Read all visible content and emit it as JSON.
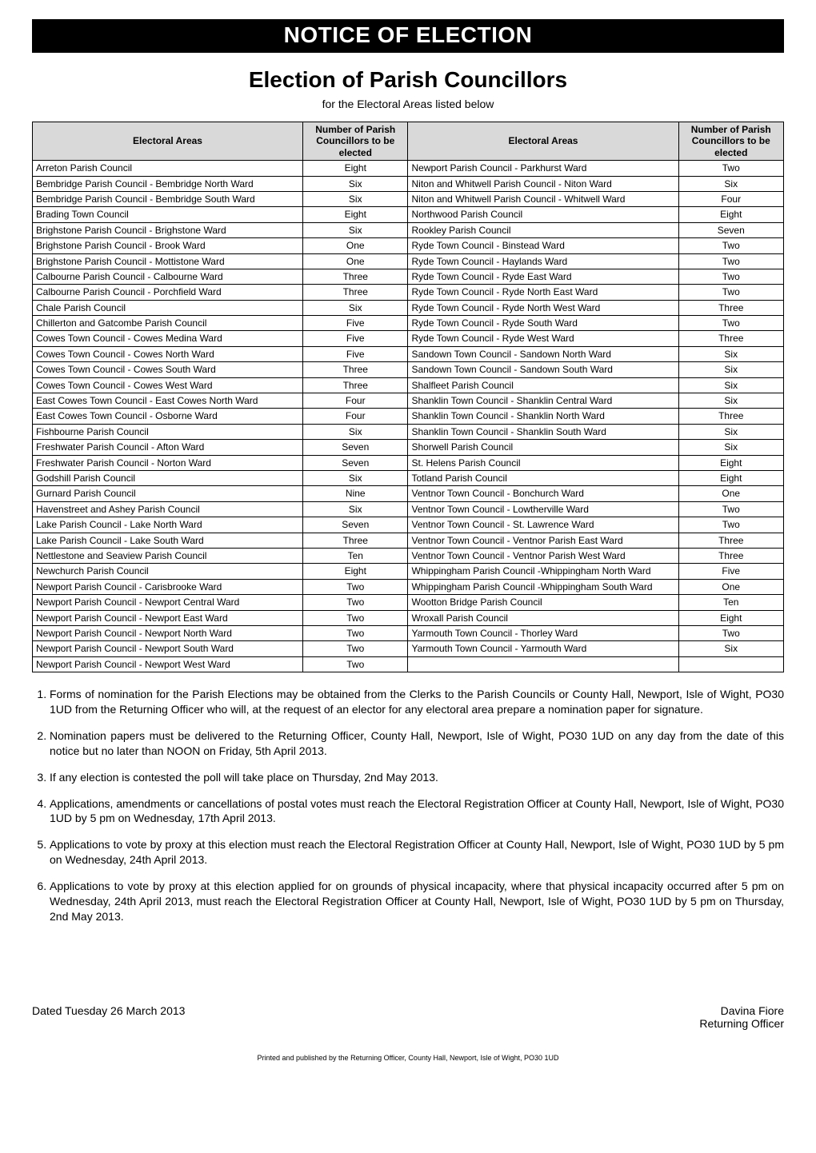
{
  "banner": "NOTICE OF ELECTION",
  "title": "Election of Parish Councillors",
  "subtitle": "for the Electoral Areas listed below",
  "table": {
    "header_area": "Electoral Areas",
    "header_count": "Number of Parish Councillors to be elected",
    "header_bg": "#d9d9d9",
    "border_color": "#000000",
    "left": [
      {
        "area": "Arreton Parish Council",
        "count": "Eight"
      },
      {
        "area": "Bembridge Parish Council - Bembridge North Ward",
        "count": "Six"
      },
      {
        "area": "Bembridge Parish Council - Bembridge South Ward",
        "count": "Six"
      },
      {
        "area": "Brading Town Council",
        "count": "Eight"
      },
      {
        "area": "Brighstone Parish Council - Brighstone Ward",
        "count": "Six"
      },
      {
        "area": "Brighstone Parish Council - Brook Ward",
        "count": "One"
      },
      {
        "area": "Brighstone Parish Council - Mottistone Ward",
        "count": "One"
      },
      {
        "area": "Calbourne Parish Council - Calbourne Ward",
        "count": "Three"
      },
      {
        "area": "Calbourne Parish Council - Porchfield Ward",
        "count": "Three"
      },
      {
        "area": "Chale Parish Council",
        "count": "Six"
      },
      {
        "area": "Chillerton and Gatcombe Parish Council",
        "count": "Five"
      },
      {
        "area": "Cowes Town Council - Cowes Medina Ward",
        "count": "Five"
      },
      {
        "area": "Cowes Town Council - Cowes North Ward",
        "count": "Five"
      },
      {
        "area": "Cowes Town Council - Cowes South Ward",
        "count": "Three"
      },
      {
        "area": "Cowes Town Council - Cowes West Ward",
        "count": "Three"
      },
      {
        "area": "East Cowes Town Council - East Cowes North Ward",
        "count": "Four"
      },
      {
        "area": "East Cowes Town Council - Osborne Ward",
        "count": "Four"
      },
      {
        "area": "Fishbourne Parish Council",
        "count": "Six"
      },
      {
        "area": "Freshwater Parish Council - Afton Ward",
        "count": "Seven"
      },
      {
        "area": "Freshwater Parish Council - Norton Ward",
        "count": "Seven"
      },
      {
        "area": "Godshill Parish Council",
        "count": "Six"
      },
      {
        "area": "Gurnard Parish Council",
        "count": "Nine"
      },
      {
        "area": "Havenstreet and Ashey Parish Council",
        "count": "Six"
      },
      {
        "area": "Lake Parish Council - Lake North Ward",
        "count": "Seven"
      },
      {
        "area": "Lake Parish Council - Lake South Ward",
        "count": "Three"
      },
      {
        "area": "Nettlestone and Seaview Parish Council",
        "count": "Ten"
      },
      {
        "area": "Newchurch Parish Council",
        "count": "Eight"
      },
      {
        "area": "Newport Parish Council - Carisbrooke Ward",
        "count": "Two"
      },
      {
        "area": "Newport Parish Council - Newport Central Ward",
        "count": "Two"
      },
      {
        "area": "Newport Parish Council - Newport East Ward",
        "count": "Two"
      },
      {
        "area": "Newport Parish Council - Newport North Ward",
        "count": "Two"
      },
      {
        "area": "Newport Parish Council - Newport South Ward",
        "count": "Two"
      },
      {
        "area": "Newport Parish Council - Newport West Ward",
        "count": "Two"
      }
    ],
    "right": [
      {
        "area": "Newport Parish Council - Parkhurst Ward",
        "count": "Two"
      },
      {
        "area": "Niton and Whitwell Parish Council - Niton Ward",
        "count": "Six"
      },
      {
        "area": "Niton and Whitwell Parish Council - Whitwell Ward",
        "count": "Four"
      },
      {
        "area": "Northwood Parish Council",
        "count": "Eight"
      },
      {
        "area": "Rookley Parish Council",
        "count": "Seven"
      },
      {
        "area": "Ryde Town Council - Binstead Ward",
        "count": "Two"
      },
      {
        "area": "Ryde Town Council - Haylands Ward",
        "count": "Two"
      },
      {
        "area": "Ryde Town Council - Ryde East Ward",
        "count": "Two"
      },
      {
        "area": "Ryde Town Council - Ryde North East Ward",
        "count": "Two"
      },
      {
        "area": "Ryde Town Council - Ryde North West Ward",
        "count": "Three"
      },
      {
        "area": "Ryde Town Council - Ryde South Ward",
        "count": "Two"
      },
      {
        "area": "Ryde Town Council - Ryde West Ward",
        "count": "Three"
      },
      {
        "area": "Sandown Town Council - Sandown North Ward",
        "count": "Six"
      },
      {
        "area": "Sandown Town Council - Sandown South Ward",
        "count": "Six"
      },
      {
        "area": "Shalfleet Parish Council",
        "count": "Six"
      },
      {
        "area": "Shanklin Town Council - Shanklin Central Ward",
        "count": "Six"
      },
      {
        "area": "Shanklin Town Council - Shanklin North Ward",
        "count": "Three"
      },
      {
        "area": "Shanklin Town Council - Shanklin South Ward",
        "count": "Six"
      },
      {
        "area": "Shorwell Parish Council",
        "count": "Six"
      },
      {
        "area": "St. Helens Parish Council",
        "count": "Eight"
      },
      {
        "area": "Totland Parish Council",
        "count": "Eight"
      },
      {
        "area": "Ventnor Town Council - Bonchurch Ward",
        "count": "One"
      },
      {
        "area": "Ventnor Town Council - Lowtherville Ward",
        "count": "Two"
      },
      {
        "area": "Ventnor Town Council - St. Lawrence Ward",
        "count": "Two"
      },
      {
        "area": "Ventnor Town Council - Ventnor Parish East Ward",
        "count": "Three"
      },
      {
        "area": "Ventnor Town Council - Ventnor Parish West Ward",
        "count": "Three"
      },
      {
        "area": "Whippingham Parish Council -Whippingham North Ward",
        "count": "Five"
      },
      {
        "area": "Whippingham Parish Council -Whippingham South Ward",
        "count": "One"
      },
      {
        "area": "Wootton Bridge Parish Council",
        "count": "Ten"
      },
      {
        "area": "Wroxall Parish Council",
        "count": "Eight"
      },
      {
        "area": "Yarmouth Town Council - Thorley Ward",
        "count": "Two"
      },
      {
        "area": "Yarmouth Town Council - Yarmouth Ward",
        "count": "Six"
      },
      {
        "area": "",
        "count": ""
      }
    ]
  },
  "notes": [
    "Forms of nomination for the Parish Elections may be obtained from the Clerks to the Parish Councils or County Hall, Newport, Isle of Wight, PO30 1UD from the Returning Officer who will, at the request of an elector for any electoral area prepare a nomination paper for signature.",
    "Nomination papers must be delivered to the Returning Officer, County Hall, Newport, Isle of Wight, PO30 1UD on any day from the date of this notice but no later than NOON on Friday, 5th April 2013.",
    "If any election is contested the poll will take place on Thursday, 2nd May 2013.",
    "Applications, amendments or cancellations of postal votes must reach the Electoral Registration Officer at County Hall, Newport, Isle of Wight, PO30 1UD by 5 pm on Wednesday, 17th April 2013.",
    "Applications to vote by proxy at this election must reach the Electoral Registration Officer at County Hall, Newport, Isle of Wight, PO30 1UD by 5 pm on Wednesday, 24th April 2013.",
    "Applications to vote by proxy at this election applied for on grounds of physical incapacity, where that physical incapacity occurred after 5 pm on Wednesday, 24th April 2013, must reach the Electoral Registration Officer at County Hall, Newport, Isle of Wight, PO30 1UD by 5 pm on Thursday, 2nd May 2013."
  ],
  "footer": {
    "date": "Dated Tuesday 26 March 2013",
    "officer_name": "Davina Fiore",
    "officer_role": "Returning Officer"
  },
  "smallprint": "Printed and published by the Returning Officer, County Hall, Newport, Isle of Wight, PO30 1UD",
  "colors": {
    "banner_bg": "#000000",
    "banner_fg": "#ffffff",
    "page_bg": "#ffffff",
    "text": "#000000"
  }
}
